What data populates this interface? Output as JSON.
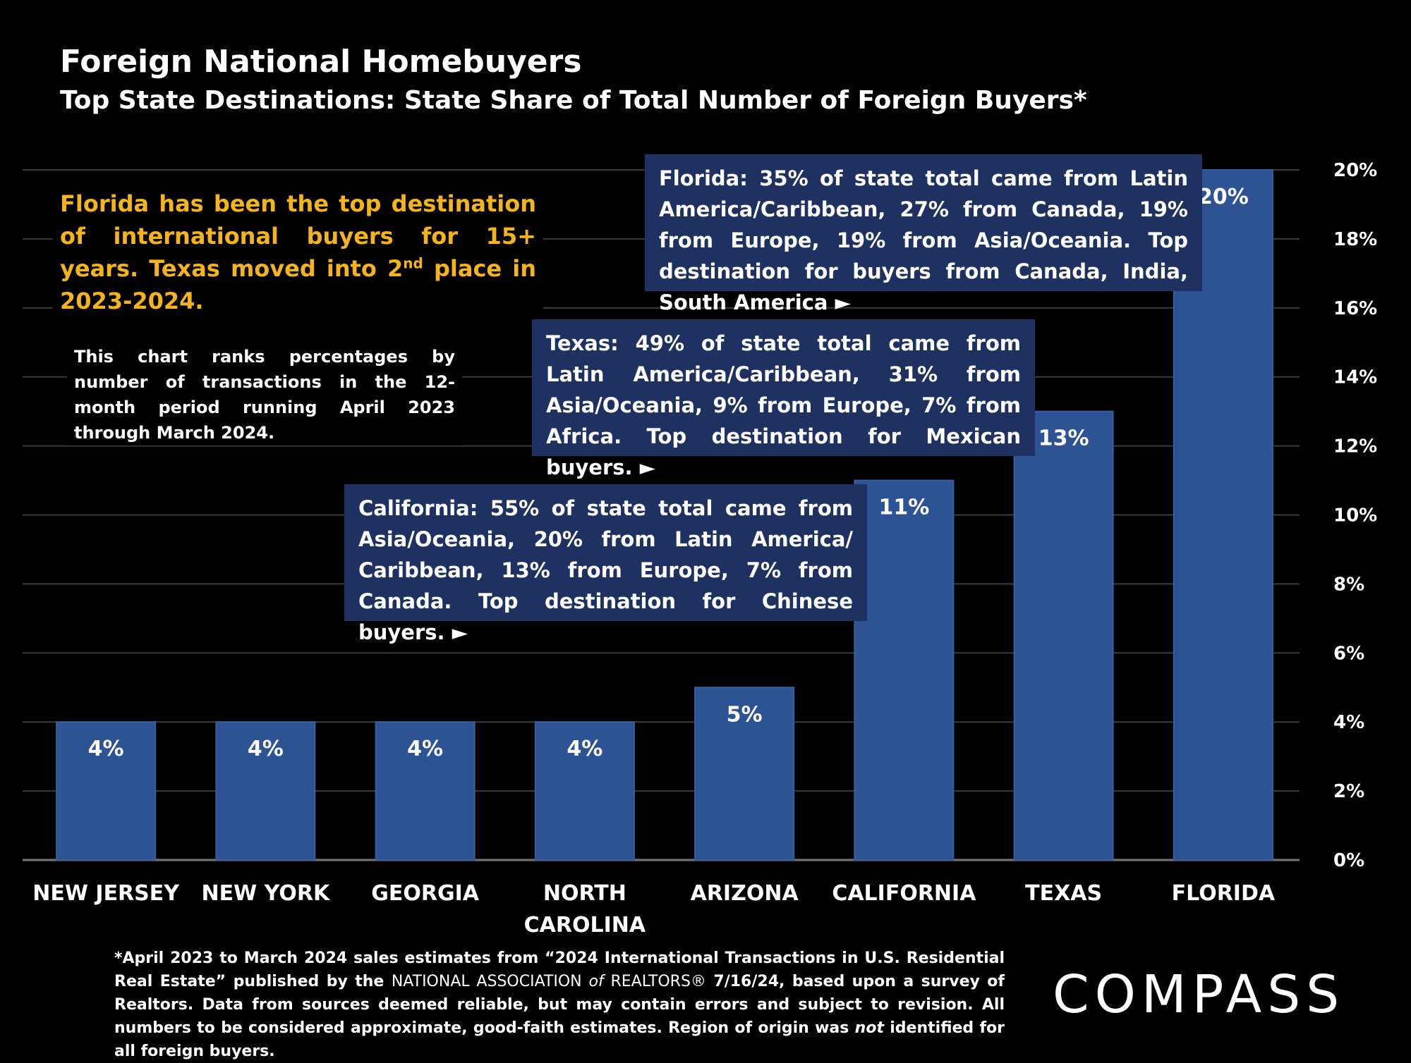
{
  "header": {
    "title": "Foreign National Homebuyers",
    "subtitle": "Top State Destinations: State Share of Total Number of Foreign Buyers*"
  },
  "callout": {
    "part1": "Florida has been the top destination of international buyers for 15+ years. Texas moved into 2",
    "sup": "nd",
    "part2": " place in 2023-2024."
  },
  "note": "This chart ranks percentages by number of transactions in the 12-month period running April 2023 through March 2024.",
  "state_boxes": {
    "florida": "Florida: 35% of state total came from Latin America/Caribbean, 27% from Canada, 19% from Europe, 19% from Asia/Oceania. Top destination for buyers from Canada, India, South America ►",
    "texas": "Texas: 49% of state total came from Latin America/Caribbean, 31% from Asia/Oceania, 9% from Europe, 7% from Africa. Top destination for Mexican buyers. ►",
    "california": "California: 55% of state total came from Asia/Oceania, 20% from Latin America/ Caribbean, 13% from Europe, 7% from Canada. Top destination for Chinese buyers. ►"
  },
  "chart_data": {
    "type": "bar",
    "title": "Top State Destinations: State Share of Total Number of Foreign Buyers*",
    "categories": [
      "NEW JERSEY",
      "NEW YORK",
      "GEORGIA",
      "NORTH CAROLINA",
      "ARIZONA",
      "CALIFORNIA",
      "TEXAS",
      "FLORIDA"
    ],
    "category_lines": [
      [
        "NEW JERSEY"
      ],
      [
        "NEW YORK"
      ],
      [
        "GEORGIA"
      ],
      [
        "NORTH",
        "CAROLINA"
      ],
      [
        "ARIZONA"
      ],
      [
        "CALIFORNIA"
      ],
      [
        "TEXAS"
      ],
      [
        "FLORIDA"
      ]
    ],
    "values": [
      4,
      4,
      4,
      4,
      5,
      11,
      13,
      20
    ],
    "data_labels": [
      "4%",
      "4%",
      "4%",
      "4%",
      "5%",
      "11%",
      "13%",
      "20%"
    ],
    "y_ticks": [
      "0%",
      "2%",
      "4%",
      "6%",
      "8%",
      "10%",
      "12%",
      "14%",
      "16%",
      "18%",
      "20%"
    ],
    "ylim": [
      0,
      20
    ],
    "y_axis_side": "right",
    "grid": true,
    "bar_color": "#2e5394",
    "xlabel": "",
    "ylabel": ""
  },
  "footnote": {
    "part1": "*April 2023 to March 2024 sales estimates from “2024 International Transactions in U.S. Residential Real Estate” published by the ",
    "org1": "NATIONAL ASSOCIATION ",
    "of": "of",
    "org2": " REALTORS®",
    "part2": " 7/16/24, based upon a survey of Realtors. Data from sources deemed reliable, but may contain errors and subject to revision.  All numbers to be considered approximate, good-faith estimates. Region of origin was ",
    "not": "not",
    "part3": " identified for all foreign buyers."
  },
  "logo": "COMPASS"
}
